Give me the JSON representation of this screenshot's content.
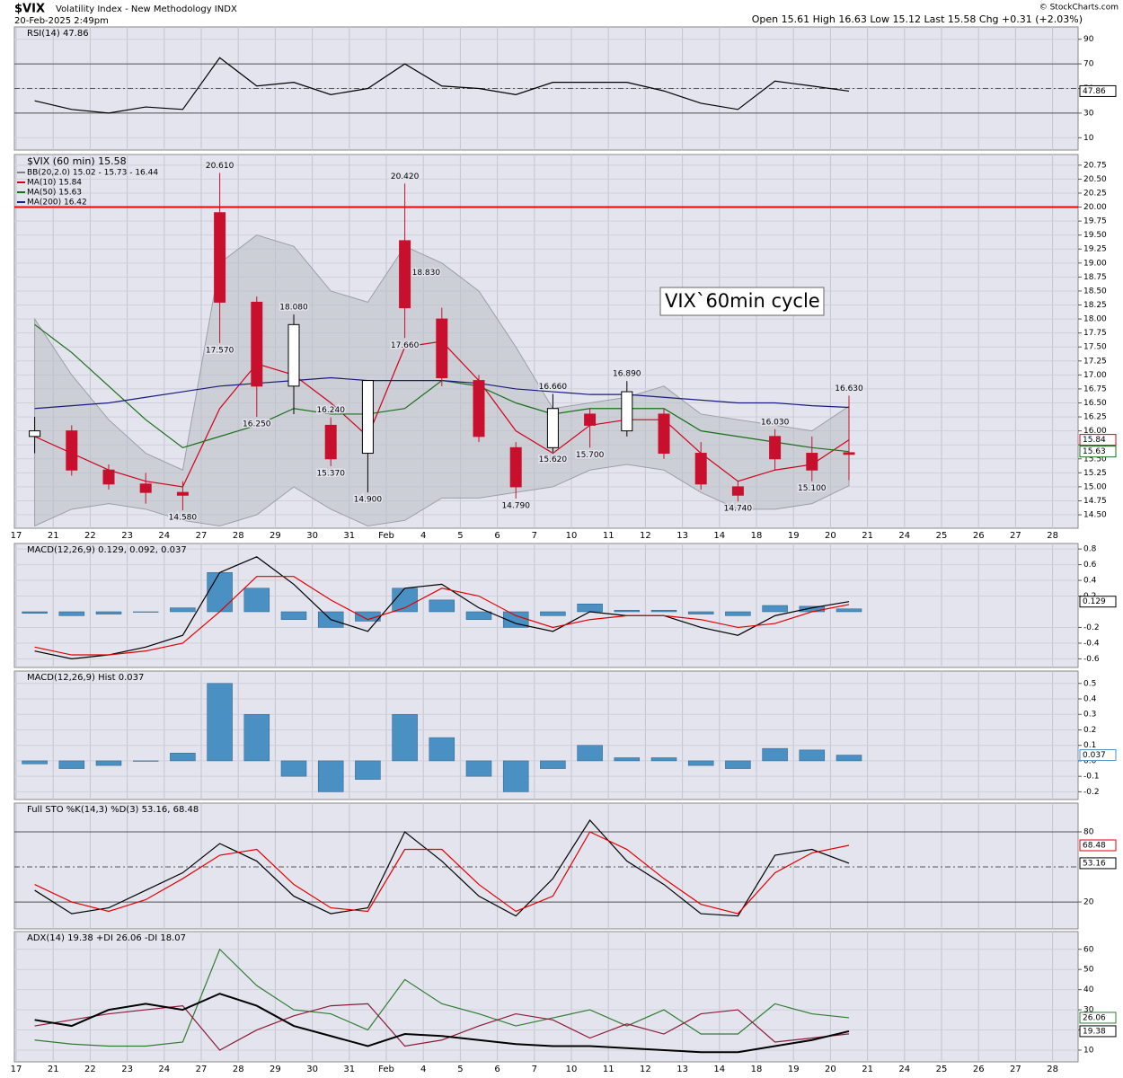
{
  "header": {
    "symbol": "$VIX",
    "name": "Volatility Index - New Methodology INDX",
    "timestamp": "20-Feb-2025 2:49pm",
    "quote": "Open 15.61 High 16.63 Low 15.12 Last 15.58 Chg +0.31 (+2.03%)",
    "credit": "© StockCharts.com"
  },
  "chart_data": [
    {
      "type": "line",
      "title": "RSI(14) 47.86",
      "ylim": [
        0,
        100
      ],
      "yticks": [
        10,
        30,
        50,
        70,
        90
      ],
      "ref_lines": [
        {
          "value": 70,
          "color": "#555555",
          "dash": false
        },
        {
          "value": 50,
          "color": "#555555",
          "dash": true
        },
        {
          "value": 30,
          "color": "#555555",
          "dash": false
        }
      ],
      "series": [
        {
          "type": "line",
          "color": "#000000",
          "end_label": true,
          "values": [
            40,
            33,
            30,
            35,
            33,
            75,
            52,
            55,
            45,
            50,
            70,
            52,
            50,
            45,
            55,
            55,
            55,
            48,
            38,
            33,
            56,
            52,
            47.86,
            null,
            null,
            null,
            null,
            null,
            null
          ]
        }
      ]
    },
    {
      "type": "candlestick",
      "title": "$VIX (60 min) 15.58",
      "legend": [
        {
          "text": "BB(20,2.0) 15.02 - 15.73 - 16.44",
          "color": "#808080"
        },
        {
          "text": "MA(10) 15.84",
          "color": "#d0021b"
        },
        {
          "text": "MA(50) 15.63",
          "color": "#1b6e1b"
        },
        {
          "text": "MA(200) 16.42",
          "color": "#1a1a80"
        }
      ],
      "note": "VIX`60min cycle",
      "categories": [
        "17",
        "21",
        "22",
        "23",
        "24",
        "27",
        "28",
        "29",
        "30",
        "31",
        "Feb",
        "4",
        "5",
        "6",
        "7",
        "10",
        "11",
        "12",
        "13",
        "14",
        "18",
        "19",
        "20",
        "21",
        "24",
        "25",
        "26",
        "27",
        "28"
      ],
      "open": [
        15.9,
        16.0,
        15.3,
        15.05,
        14.9,
        19.9,
        18.3,
        16.8,
        16.1,
        15.6,
        19.4,
        18.0,
        16.9,
        15.7,
        15.7,
        16.3,
        16.0,
        16.3,
        15.6,
        15.0,
        15.9,
        15.6,
        15.61,
        null,
        null,
        null,
        null,
        null,
        null
      ],
      "high": [
        16.25,
        16.1,
        15.4,
        15.25,
        15.1,
        20.61,
        18.4,
        18.08,
        16.24,
        16.9,
        20.42,
        18.2,
        17.0,
        15.8,
        16.66,
        16.4,
        16.89,
        16.4,
        15.8,
        15.1,
        16.03,
        15.9,
        16.63,
        null,
        null,
        null,
        null,
        null,
        null
      ],
      "low": [
        15.6,
        15.2,
        14.95,
        14.7,
        14.58,
        17.57,
        16.25,
        16.3,
        15.37,
        14.9,
        17.66,
        16.8,
        15.8,
        14.79,
        15.62,
        15.7,
        15.9,
        15.5,
        14.95,
        14.74,
        15.3,
        15.1,
        15.12,
        null,
        null,
        null,
        null,
        null,
        null
      ],
      "close": [
        16.0,
        15.3,
        15.05,
        14.9,
        14.85,
        18.3,
        16.8,
        17.9,
        15.5,
        16.9,
        18.2,
        16.95,
        15.9,
        15.0,
        16.4,
        16.1,
        16.7,
        15.6,
        15.05,
        14.85,
        15.5,
        15.3,
        15.58,
        null,
        null,
        null,
        null,
        null,
        null
      ],
      "up_color": "#000000",
      "down_color": "#c8102e",
      "band": {
        "color": "#b9bec4",
        "upper": [
          18.0,
          17.0,
          16.2,
          15.6,
          15.3,
          19.0,
          19.5,
          19.3,
          18.5,
          18.3,
          19.3,
          19.0,
          18.5,
          17.5,
          16.4,
          16.5,
          16.6,
          16.8,
          16.3,
          16.2,
          16.1,
          16.0,
          16.44,
          null,
          null,
          null,
          null,
          null,
          null
        ],
        "lower": [
          14.3,
          14.6,
          14.7,
          14.6,
          14.4,
          14.3,
          14.5,
          15.0,
          14.6,
          14.3,
          14.4,
          14.8,
          14.8,
          14.9,
          15.0,
          15.3,
          15.4,
          15.3,
          14.9,
          14.6,
          14.6,
          14.7,
          15.02,
          null,
          null,
          null,
          null,
          null,
          null
        ]
      },
      "series": [
        {
          "type": "line",
          "color": "#d0021b",
          "end_label": true,
          "values": [
            15.9,
            15.6,
            15.3,
            15.1,
            15.0,
            16.4,
            17.2,
            17.0,
            16.5,
            15.9,
            17.5,
            17.6,
            16.9,
            16.0,
            15.6,
            16.1,
            16.2,
            16.2,
            15.6,
            15.1,
            15.3,
            15.4,
            15.84,
            null,
            null,
            null,
            null,
            null,
            null
          ]
        },
        {
          "type": "line",
          "color": "#1b6e1b",
          "end_label": true,
          "values": [
            17.9,
            17.4,
            16.8,
            16.2,
            15.7,
            15.9,
            16.1,
            16.4,
            16.3,
            16.3,
            16.4,
            16.9,
            16.8,
            16.5,
            16.3,
            16.4,
            16.4,
            16.4,
            16.0,
            15.9,
            15.8,
            15.7,
            15.63,
            null,
            null,
            null,
            null,
            null,
            null
          ]
        },
        {
          "type": "line",
          "color": "#1a1a80",
          "end_label": false,
          "values": [
            16.4,
            16.45,
            16.5,
            16.6,
            16.7,
            16.8,
            16.85,
            16.9,
            16.95,
            16.9,
            16.9,
            16.9,
            16.85,
            16.75,
            16.7,
            16.65,
            16.65,
            16.6,
            16.55,
            16.5,
            16.5,
            16.45,
            16.42,
            null,
            null,
            null,
            null,
            null,
            null
          ]
        }
      ],
      "ylim": [
        14.26,
        20.94
      ],
      "yticks": [
        {
          "value": 14.5,
          "label": "14.50"
        },
        14.75,
        {
          "value": 15,
          "label": "15.00"
        },
        15.25,
        {
          "value": 15.5,
          "label": "15.50"
        },
        15.75,
        {
          "value": 16,
          "label": "16.00"
        },
        16.25,
        {
          "value": 16.5,
          "label": "16.50"
        },
        16.75,
        {
          "value": 17,
          "label": "17.00"
        },
        17.25,
        {
          "value": 17.5,
          "label": "17.50"
        },
        17.75,
        {
          "value": 18,
          "label": "18.00"
        },
        18.25,
        {
          "value": 18.5,
          "label": "18.50"
        },
        18.75,
        {
          "value": 19,
          "label": "19.00"
        },
        19.25,
        {
          "value": 19.5,
          "label": "19.50"
        },
        19.75,
        {
          "value": 20,
          "label": "20.00"
        },
        20.25,
        {
          "value": 20.5,
          "label": "20.50"
        },
        20.75
      ],
      "ref_lines": [
        {
          "value": 20,
          "color": "#ff0000",
          "dash": false
        }
      ],
      "annotations": [
        {
          "x": "24",
          "value": 14.58,
          "label": "14.580"
        },
        {
          "x": "27",
          "value": 20.61,
          "label": "20.610"
        },
        {
          "x": "27",
          "value": 17.57,
          "label": "17.570"
        },
        {
          "x": "28",
          "value": 16.25,
          "label": "16.250"
        },
        {
          "x": "29",
          "value": 18.08,
          "label": "18.080"
        },
        {
          "x": "30",
          "value": 16.24,
          "label": "16.240"
        },
        {
          "x": "30",
          "value": 15.37,
          "label": "15.370"
        },
        {
          "x": "31",
          "value": 14.9,
          "label": "14.900"
        },
        {
          "x": "Feb",
          "value": 20.42,
          "label": "20.420"
        },
        {
          "x": "Feb",
          "value": 18.83,
          "label": "18.830"
        },
        {
          "x": "Feb",
          "value": 17.66,
          "label": "17.660"
        },
        {
          "x": "6",
          "value": 14.79,
          "label": "14.790"
        },
        {
          "x": "7",
          "value": 15.62,
          "label": "15.620"
        },
        {
          "x": "7",
          "value": 16.66,
          "label": "16.660"
        },
        {
          "x": "10",
          "value": 15.7,
          "label": "15.700"
        },
        {
          "x": "11",
          "value": 16.89,
          "label": "16.890"
        },
        {
          "x": "14",
          "value": 14.74,
          "label": "14.740"
        },
        {
          "x": "18",
          "value": 16.03,
          "label": "16.030"
        },
        {
          "x": "19",
          "value": 15.1,
          "label": "15.100"
        },
        {
          "x": "20",
          "value": 16.63,
          "label": "16.630"
        }
      ]
    },
    {
      "type": "line",
      "title": "MACD(12,26,9) 0.129, 0.092, 0.037",
      "ylim": [
        -0.71,
        0.87
      ],
      "yticks": [
        -0.6,
        -0.4,
        -0.2,
        0.2,
        0.4,
        0.6,
        0.8
      ],
      "ref_lines": [],
      "series": [
        {
          "type": "bar",
          "color": "#4a90c2",
          "end_label": false,
          "values": [
            -0.02,
            -0.05,
            -0.03,
            0.0,
            0.05,
            0.5,
            0.3,
            -0.1,
            -0.2,
            -0.12,
            0.3,
            0.15,
            -0.1,
            -0.2,
            -0.05,
            0.1,
            0.02,
            0.02,
            -0.03,
            -0.05,
            0.08,
            0.07,
            0.037,
            null,
            null,
            null,
            null,
            null,
            null
          ]
        },
        {
          "type": "line",
          "color": "#000000",
          "end_label": true,
          "values": [
            -0.5,
            -0.6,
            -0.55,
            -0.45,
            -0.3,
            0.5,
            0.7,
            0.35,
            -0.1,
            -0.25,
            0.3,
            0.35,
            0.05,
            -0.15,
            -0.25,
            0.0,
            -0.05,
            -0.05,
            -0.2,
            -0.3,
            -0.05,
            0.05,
            0.129,
            null,
            null,
            null,
            null,
            null,
            null
          ]
        },
        {
          "type": "line",
          "color": "#e00000",
          "end_label": false,
          "values": [
            -0.45,
            -0.55,
            -0.55,
            -0.5,
            -0.4,
            0.0,
            0.45,
            0.45,
            0.15,
            -0.1,
            0.05,
            0.3,
            0.2,
            -0.05,
            -0.2,
            -0.1,
            -0.05,
            -0.05,
            -0.1,
            -0.2,
            -0.15,
            0.0,
            0.092,
            null,
            null,
            null,
            null,
            null,
            null
          ]
        }
      ]
    },
    {
      "type": "line",
      "title": "MACD(12,26,9) Hist 0.037",
      "ylim": [
        -0.25,
        0.58
      ],
      "yticks": [
        -0.2,
        -0.1,
        {
          "value": 0,
          "label": "0.0"
        },
        0.1,
        0.2,
        0.3,
        0.4,
        0.5
      ],
      "ref_lines": [],
      "series": [
        {
          "type": "bar",
          "color": "#4a90c2",
          "end_label": true,
          "values": [
            -0.02,
            -0.05,
            -0.03,
            0.0,
            0.05,
            0.5,
            0.3,
            -0.1,
            -0.2,
            -0.12,
            0.3,
            0.15,
            -0.1,
            -0.2,
            -0.05,
            0.1,
            0.02,
            0.02,
            -0.03,
            -0.05,
            0.08,
            0.07,
            0.037,
            null,
            null,
            null,
            null,
            null,
            null
          ]
        }
      ]
    },
    {
      "type": "line",
      "title": "Full STO %K(14,3) %D(3) 53.16, 68.48",
      "ylim": [
        -3,
        104.6
      ],
      "yticks": [
        20,
        80
      ],
      "ref_lines": [
        {
          "value": 80,
          "color": "#555555",
          "dash": false
        },
        {
          "value": 50,
          "color": "#555555",
          "dash": true
        },
        {
          "value": 20,
          "color": "#555555",
          "dash": false
        }
      ],
      "series": [
        {
          "type": "line",
          "color": "#000000",
          "end_label": true,
          "values": [
            30,
            10,
            15,
            30,
            45,
            70,
            55,
            25,
            10,
            15,
            80,
            55,
            25,
            8,
            40,
            90,
            55,
            35,
            10,
            8,
            60,
            65,
            53.16,
            null,
            null,
            null,
            null,
            null,
            null
          ]
        },
        {
          "type": "line",
          "color": "#e00000",
          "end_label": true,
          "values": [
            35,
            20,
            12,
            22,
            40,
            60,
            65,
            35,
            15,
            12,
            65,
            65,
            35,
            12,
            25,
            80,
            65,
            40,
            18,
            10,
            45,
            62,
            68.48,
            null,
            null,
            null,
            null,
            null,
            null
          ]
        }
      ]
    },
    {
      "type": "line",
      "title": "ADX(14) 19.38 +DI 26.06 -DI 18.07",
      "ylim": [
        4.2,
        68.8
      ],
      "yticks": [
        10,
        20,
        30,
        40,
        50,
        60
      ],
      "ref_lines": [],
      "categories": [
        "17",
        "21",
        "22",
        "23",
        "24",
        "27",
        "28",
        "29",
        "30",
        "31",
        "Feb",
        "4",
        "5",
        "6",
        "7",
        "10",
        "11",
        "12",
        "13",
        "14",
        "18",
        "19",
        "20",
        "21",
        "24",
        "25",
        "26",
        "27",
        "28"
      ],
      "series": [
        {
          "type": "line",
          "color": "#2e7d32",
          "end_label": true,
          "values": [
            15,
            13,
            12,
            12,
            14,
            60,
            42,
            30,
            28,
            20,
            45,
            33,
            28,
            22,
            26,
            30,
            22,
            30,
            18,
            18,
            33,
            28,
            26.06,
            null,
            null,
            null,
            null,
            null,
            null
          ]
        },
        {
          "type": "line",
          "color": "#8b1a3a",
          "end_label": false,
          "values": [
            22,
            25,
            28,
            30,
            32,
            10,
            20,
            27,
            32,
            33,
            12,
            15,
            22,
            28,
            25,
            16,
            23,
            18,
            28,
            30,
            14,
            16,
            18.07,
            null,
            null,
            null,
            null,
            null,
            null
          ]
        },
        {
          "type": "line",
          "color": "#000000",
          "width": 2,
          "end_label": true,
          "values": [
            25,
            22,
            30,
            33,
            30,
            38,
            32,
            22,
            17,
            12,
            18,
            17,
            15,
            13,
            12,
            12,
            11,
            10,
            9,
            9,
            12,
            15,
            19.38,
            null,
            null,
            null,
            null,
            null,
            null
          ]
        }
      ]
    }
  ]
}
